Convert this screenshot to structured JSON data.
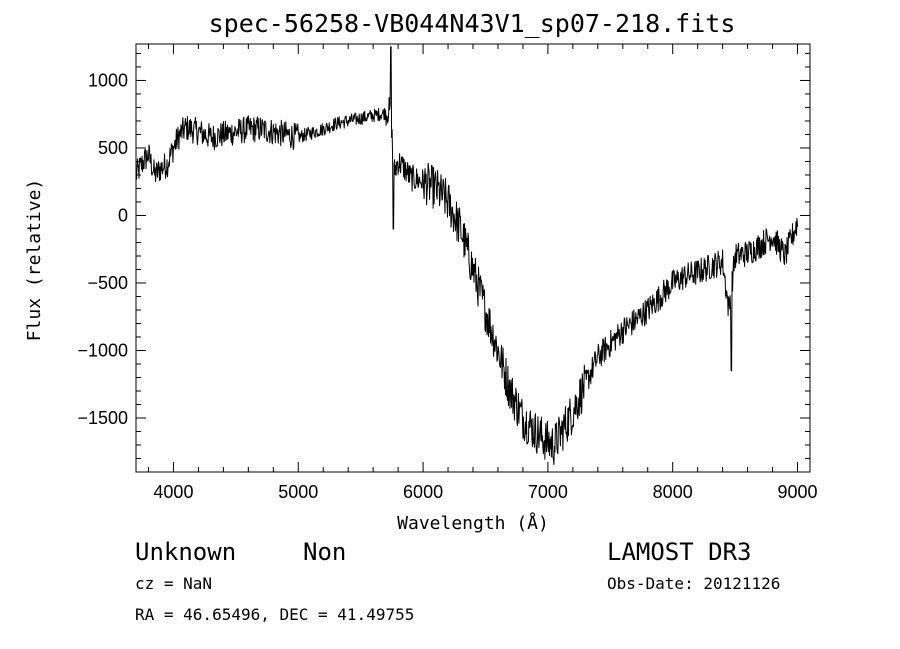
{
  "chart_data": {
    "type": "line",
    "title": "spec-56258-VB044N43V1_sp07-218.fits",
    "xlabel": "Wavelength (Å)",
    "ylabel": "Flux (relative)",
    "xlim": [
      3700,
      9100
    ],
    "ylim": [
      -1900,
      1270
    ],
    "xticks": [
      4000,
      5000,
      6000,
      7000,
      8000,
      9000
    ],
    "xtick_labels": [
      "4000",
      "5000",
      "6000",
      "7000",
      "8000",
      "9000"
    ],
    "yticks": [
      1000,
      500,
      0,
      -500,
      -1000,
      -1500
    ],
    "ytick_labels": [
      "1000",
      "500",
      "0",
      "−500",
      "−1000",
      "−1500"
    ],
    "grid": false,
    "line_color": "#000000",
    "series": [
      {
        "anchors_x": [
          3700,
          3760,
          3800,
          3850,
          3900,
          3950,
          4000,
          4050,
          4100,
          4200,
          4300,
          4400,
          4500,
          4600,
          4700,
          4800,
          4900,
          5000,
          5100,
          5200,
          5300,
          5400,
          5500,
          5600,
          5650,
          5700,
          5730,
          5750,
          5760,
          5800,
          5850,
          5900,
          6000,
          6100,
          6200,
          6300,
          6400,
          6500,
          6600,
          6700,
          6800,
          6900,
          7000,
          7050,
          7100,
          7200,
          7300,
          7400,
          7500,
          7600,
          7700,
          7800,
          7900,
          8000,
          8100,
          8200,
          8300,
          8400,
          8450,
          8500,
          8600,
          8700,
          8800,
          8900,
          9000
        ],
        "anchors_y": [
          300,
          400,
          450,
          300,
          350,
          380,
          500,
          600,
          650,
          620,
          580,
          600,
          620,
          640,
          640,
          620,
          600,
          580,
          610,
          640,
          680,
          700,
          720,
          740,
          750,
          760,
          780,
          650,
          300,
          400,
          350,
          280,
          250,
          200,
          100,
          -100,
          -400,
          -700,
          -1000,
          -1300,
          -1500,
          -1600,
          -1680,
          -1700,
          -1620,
          -1450,
          -1250,
          -1050,
          -950,
          -850,
          -780,
          -700,
          -600,
          -500,
          -450,
          -420,
          -380,
          -340,
          -700,
          -300,
          -280,
          -220,
          -150,
          -300,
          -50
        ],
        "noise_amplitude": 100
      }
    ]
  },
  "info": {
    "object_class": "Unknown",
    "object_subclass": "Non",
    "survey": "LAMOST DR3",
    "cz": "cz = NaN",
    "obs_date": "Obs-Date: 20121126",
    "coords": "RA =  46.65496, DEC =  41.49755"
  }
}
